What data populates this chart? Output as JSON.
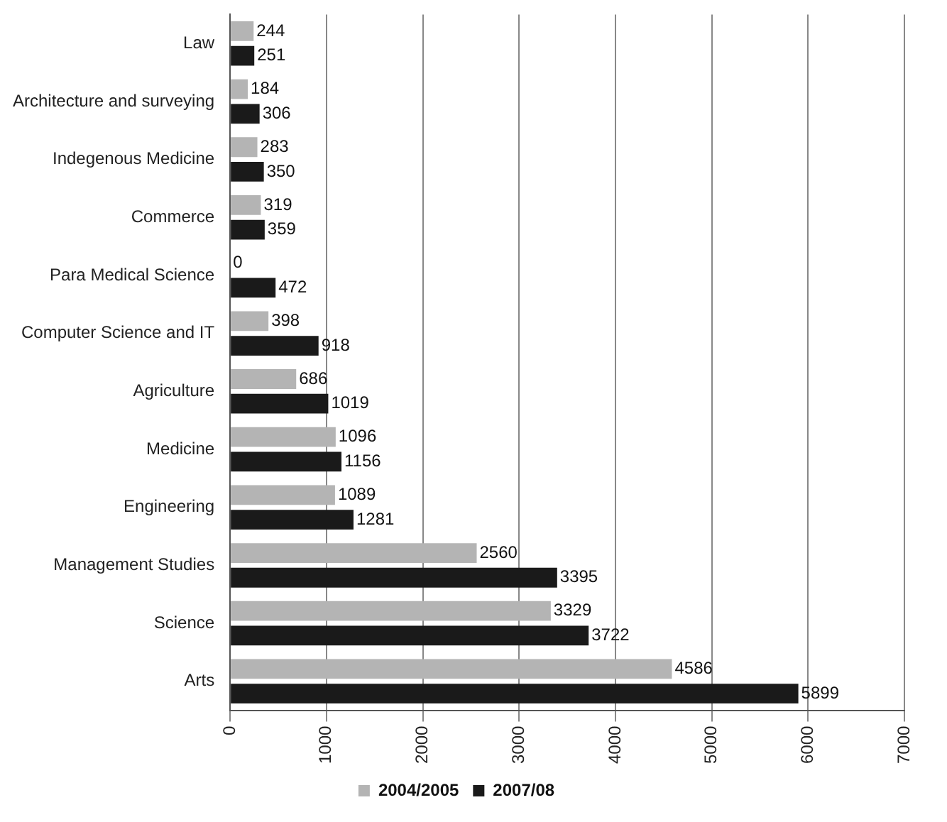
{
  "chart_data": {
    "type": "bar",
    "orientation": "horizontal",
    "categories": [
      "Law",
      "Architecture and surveying",
      "Indegenous Medicine",
      "Commerce",
      "Para Medical Science",
      "Computer Science and IT",
      "Agriculture",
      "Medicine",
      "Engineering",
      "Management Studies",
      "Science",
      "Arts"
    ],
    "series": [
      {
        "name": "2004/2005",
        "color": "#b4b4b4",
        "values": [
          244,
          184,
          283,
          319,
          0,
          398,
          686,
          1096,
          1089,
          2560,
          3329,
          4586
        ]
      },
      {
        "name": "2007/08",
        "color": "#1a1a1a",
        "values": [
          251,
          306,
          350,
          359,
          472,
          918,
          1019,
          1156,
          1281,
          3395,
          3722,
          5899
        ]
      }
    ],
    "xlim": [
      0,
      7000
    ],
    "xticks": [
      0,
      1000,
      2000,
      3000,
      4000,
      5000,
      6000,
      7000
    ],
    "grid": "x",
    "legend": "bottom",
    "data_labels": true
  }
}
